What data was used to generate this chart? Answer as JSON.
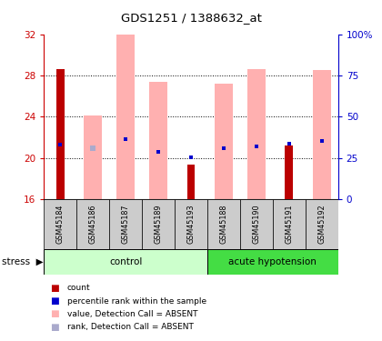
{
  "title": "GDS1251 / 1388632_at",
  "samples": [
    "GSM45184",
    "GSM45186",
    "GSM45187",
    "GSM45189",
    "GSM45193",
    "GSM45188",
    "GSM45190",
    "GSM45191",
    "GSM45192"
  ],
  "control_indices": [
    0,
    1,
    2,
    3,
    4
  ],
  "hypo_indices": [
    5,
    6,
    7,
    8
  ],
  "ylim_left": [
    16,
    32
  ],
  "ylim_right": [
    0,
    100
  ],
  "yticks_left": [
    16,
    20,
    24,
    28,
    32
  ],
  "yticks_right": [
    0,
    25,
    50,
    75,
    100
  ],
  "ytick_labels_right": [
    "0",
    "25",
    "50",
    "75",
    "100%"
  ],
  "red_bars": [
    28.6,
    null,
    null,
    null,
    19.4,
    null,
    null,
    21.2,
    null
  ],
  "pink_bars": [
    null,
    24.1,
    32.0,
    27.4,
    null,
    27.2,
    28.6,
    null,
    28.5
  ],
  "blue_dots": [
    21.3,
    null,
    21.8,
    20.6,
    20.1,
    21.0,
    21.1,
    21.4,
    21.7
  ],
  "lavender_dots": [
    null,
    21.0,
    null,
    null,
    null,
    null,
    null,
    null,
    null
  ],
  "colors": {
    "red": "#bb0000",
    "pink": "#ffb0b0",
    "blue": "#0000cc",
    "lavender": "#aaaacc",
    "control_bg": "#ccffcc",
    "hypo_bg": "#44dd44",
    "label_bg": "#cccccc",
    "left_tick_color": "#cc0000",
    "right_tick_color": "#0000cc"
  },
  "base": 16,
  "pink_bar_width": 0.55,
  "red_bar_width": 0.25
}
